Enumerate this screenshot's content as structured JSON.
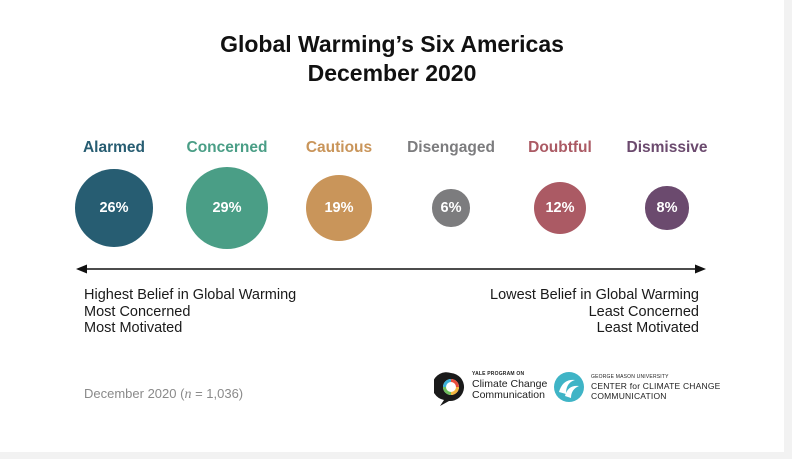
{
  "title_line1": "Global Warming’s Six Americas",
  "title_line2": "December 2020",
  "chart_data": {
    "type": "bubble",
    "title": "Global Warming’s Six Americas December 2020",
    "categories": [
      "Alarmed",
      "Concerned",
      "Cautious",
      "Disengaged",
      "Doubtful",
      "Dismissive"
    ],
    "values": [
      26,
      29,
      19,
      6,
      12,
      8
    ],
    "value_labels": [
      "26%",
      "29%",
      "19%",
      "6%",
      "12%",
      "8%"
    ],
    "unit": "%",
    "colors": [
      "#275d72",
      "#4a9e86",
      "#c9955a",
      "#7c7c7e",
      "#ab5a64",
      "#6b4a6e"
    ],
    "axis": {
      "direction": "two-headed arrow",
      "left_end": [
        "Highest Belief in Global Warming",
        "Most Concerned",
        "Most Motivated"
      ],
      "right_end": [
        "Lowest Belief in Global Warming",
        "Least Concerned",
        "Least Motivated"
      ]
    }
  },
  "footnote": {
    "prefix": "December 2020 (",
    "n_symbol": "n",
    "suffix": " = 1,036)"
  },
  "logos": {
    "yale": {
      "small": "YALE PROGRAM ON",
      "line1": "Climate Change",
      "line2": "Communication"
    },
    "gmu": {
      "small": "GEORGE MASON UNIVERSITY",
      "line1": "CENTER for CLIMATE CHANGE",
      "line2": "COMMUNICATION"
    }
  }
}
